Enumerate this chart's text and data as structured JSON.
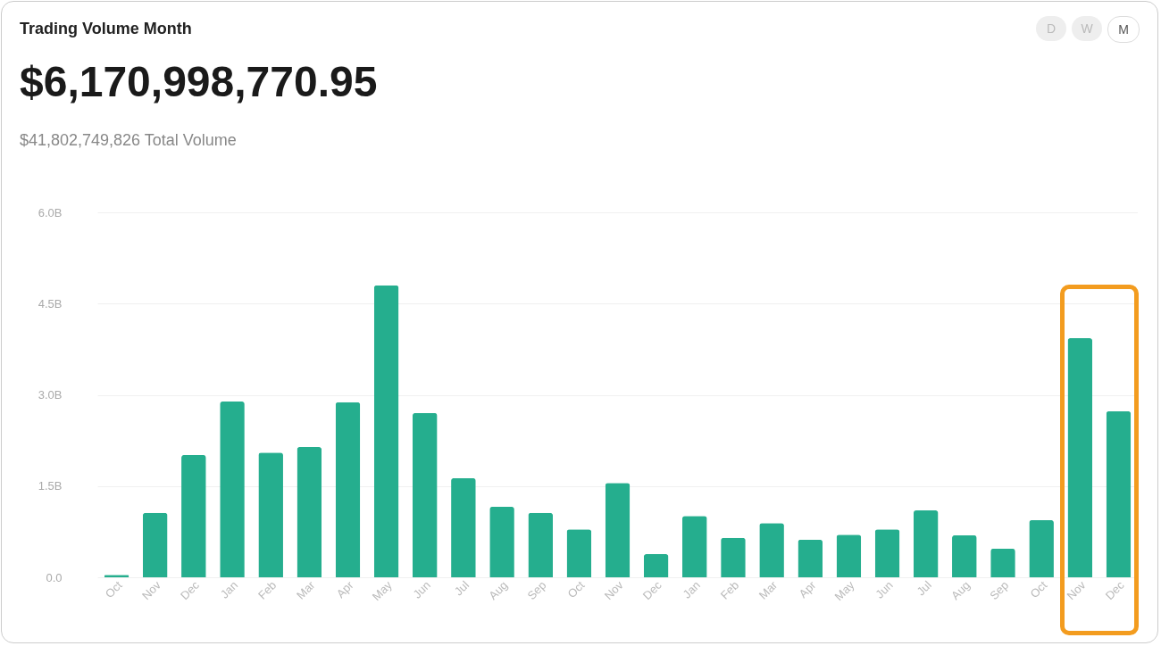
{
  "chart_data": {
    "type": "bar",
    "title": "Trading Volume Month",
    "subtitle": "$6,170,998,770.95",
    "annotations": [
      "$41,802,749,826 Total Volume",
      "D",
      "W",
      "M"
    ],
    "categories": [
      "Oct",
      "Nov",
      "Dec",
      "Jan",
      "Feb",
      "Mar",
      "Apr",
      "May",
      "Jun",
      "Jul",
      "Aug",
      "Sep",
      "Oct",
      "Nov",
      "Dec",
      "Jan",
      "Feb",
      "Mar",
      "Apr",
      "May",
      "Jun",
      "Jul",
      "Aug",
      "Sep",
      "Oct",
      "Nov",
      "Dec"
    ],
    "values": [
      0.04,
      1.06,
      2.01,
      2.89,
      2.05,
      2.14,
      2.88,
      4.8,
      2.7,
      1.63,
      1.16,
      1.06,
      0.79,
      1.55,
      0.38,
      1.01,
      0.65,
      0.89,
      0.62,
      0.7,
      0.79,
      1.1,
      0.69,
      0.47,
      0.94,
      3.93,
      2.73
    ],
    "color": "#25ae8e",
    "ylim": [
      0,
      6
    ],
    "yticks": [
      {
        "value": 0,
        "label": "0.0"
      },
      {
        "value": 1.5,
        "label": "1.5B"
      },
      {
        "value": 3,
        "label": "3.0B"
      },
      {
        "value": 4.5,
        "label": "4.5B"
      },
      {
        "value": 6,
        "label": "6.0B"
      }
    ],
    "grid": "y"
  }
}
